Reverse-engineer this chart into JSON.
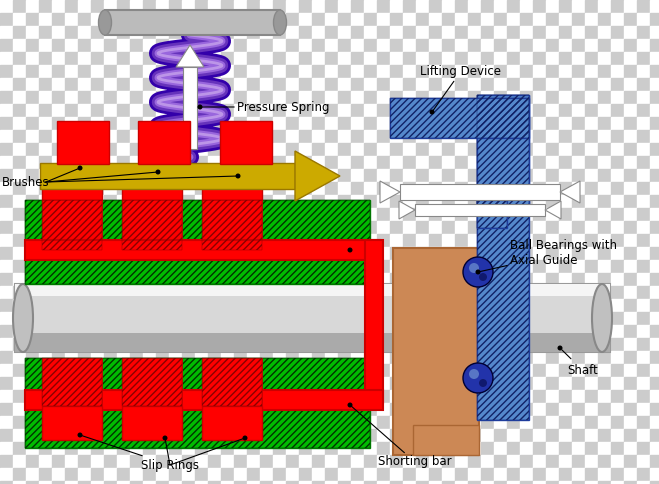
{
  "fig_width": 6.59,
  "fig_height": 4.84,
  "dpi": 100,
  "colors": {
    "red": "#ff0000",
    "red_dark": "#cc0000",
    "red_hatch": "#880000",
    "green": "#00bb00",
    "green_dark": "#008800",
    "green_hatch": "#003300",
    "gold": "#ccaa00",
    "gold_dark": "#997700",
    "blue": "#5588cc",
    "blue_dark": "#2244aa",
    "blue_hatch": "#112266",
    "navy": "#111a66",
    "gray_light": "#e0e0e0",
    "gray_mid": "#aaaaaa",
    "gray_dark": "#777777",
    "tan": "#cc8855",
    "tan_dark": "#aa6633",
    "white": "#ffffff",
    "black": "#000000",
    "purple_dark": "#3300aa",
    "purple_mid": "#6633bb",
    "purple_light": "#9966dd",
    "purple_very_light": "#ccaaee",
    "checker1": "#ffffff",
    "checker2": "#cccccc"
  },
  "labels": {
    "pressure_spring": "Pressure Spring",
    "lifting_device": "Lifting Device",
    "brushes": "Brushes",
    "ball_bearings": "Ball Bearings with\nAxial Guide",
    "slip_rings": "Slip Rings",
    "shorting_bar": "Shorting bar",
    "shaft": "Shaft"
  }
}
